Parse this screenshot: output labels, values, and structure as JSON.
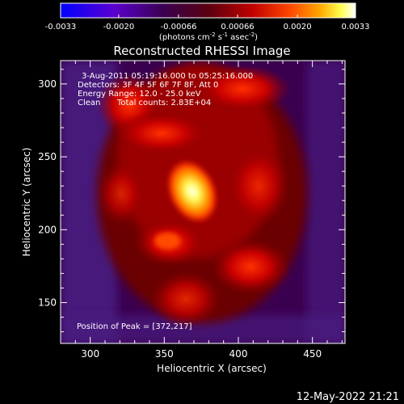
{
  "colorbar": {
    "tick_labels": [
      "-0.0033",
      "-0.0020",
      "-0.00066",
      "0.00066",
      "0.0020",
      "0.0033"
    ],
    "tick_values": [
      -0.0033,
      -0.002,
      -0.00066,
      0.00066,
      0.002,
      0.0033
    ],
    "range": [
      -0.0033,
      0.0033
    ],
    "units": "(photons cm",
    "units_sup1": "-2",
    "units_mid": " s",
    "units_sup2": "-1",
    "units_end": " asec",
    "units_sup3": "-2",
    "units_close": ")",
    "colors": [
      "#0000ff",
      "#7a00c8",
      "#5a0060",
      "#a00000",
      "#ff2000",
      "#ff9b00",
      "#ffff40",
      "#ffffff"
    ]
  },
  "chart_data": {
    "type": "heatmap",
    "title": "Reconstructed RHESSI Image",
    "xlabel": "Heliocentric X (arcsec)",
    "ylabel": "Heliocentric Y (arcsec)",
    "xlim": [
      280,
      472
    ],
    "ylim": [
      122,
      316
    ],
    "x_ticks": [
      300,
      350,
      400,
      450
    ],
    "y_ticks": [
      150,
      200,
      250,
      300
    ],
    "annotations": {
      "time_range": "3-Aug-2011 05:19:16.000 to 05:25:16.000",
      "detectors": "Detectors: 3F 4F 5F 6F 7F 8F, Att 0",
      "energy_range": "Energy Range: 12.0 - 25.0 keV",
      "clean": "Clean",
      "total_counts": "Total counts: 2.83E+04",
      "peak_position": "Position of Peak = [372,217]"
    },
    "peak": {
      "x": 372,
      "y": 217
    },
    "sources": [
      {
        "x": 370,
        "y": 224,
        "value": 0.0033
      },
      {
        "x": 358,
        "y": 188,
        "value": 0.0012
      },
      {
        "x": 350,
        "y": 262,
        "value": 0.0009
      },
      {
        "x": 395,
        "y": 295,
        "value": 0.0009
      },
      {
        "x": 395,
        "y": 165,
        "value": 0.0008
      }
    ]
  },
  "footer": {
    "timestamp": "12-May-2022 21:21"
  }
}
